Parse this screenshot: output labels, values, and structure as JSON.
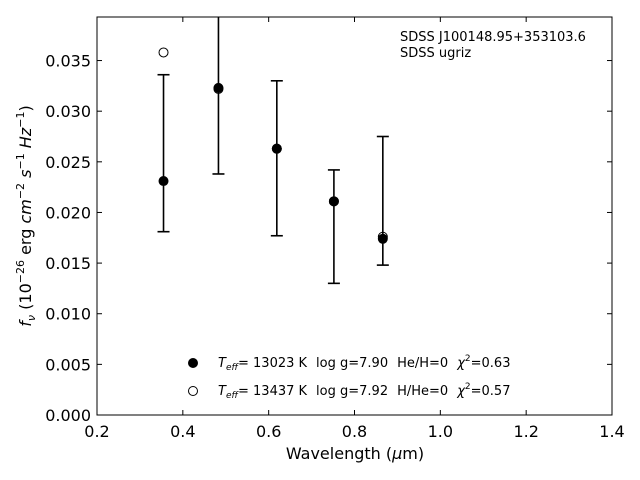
{
  "chart_data": {
    "type": "scatter",
    "title": "",
    "annotation": [
      "SDSS J100148.95+353103.6",
      "SDSS ugriz"
    ],
    "xlabel": "Wavelength (μm)",
    "ylabel": "f_ν (10^-26 erg cm^-2 s^-1 Hz^-1)",
    "xlim": [
      0.2,
      1.4
    ],
    "ylim": [
      0.0,
      0.0393
    ],
    "xticks": [
      "0.2",
      "0.4",
      "0.6",
      "0.8",
      "1.0",
      "1.2",
      "1.4"
    ],
    "yticks": [
      "0.000",
      "0.005",
      "0.010",
      "0.015",
      "0.020",
      "0.025",
      "0.030",
      "0.035"
    ],
    "grid": false,
    "legend_position": "bottom-center",
    "observed": {
      "x": [
        0.355,
        0.483,
        0.619,
        0.752,
        0.866
      ],
      "y": [
        0.0231,
        0.0324,
        0.0265,
        0.0211,
        0.0172
      ],
      "err_low": [
        0.0181,
        0.0238,
        0.0177,
        0.013,
        0.0148
      ],
      "err_high": [
        0.0336,
        0.0393,
        0.033,
        0.0242,
        0.0275
      ]
    },
    "series": [
      {
        "legend": {
          "teff_value": "= 13023 K",
          "logg": "log g=7.90",
          "comp": "He/H=0",
          "chi2": "=0.63"
        },
        "marker": "filled",
        "x": [
          0.355,
          0.483,
          0.619,
          0.752,
          0.866
        ],
        "y": [
          0.0231,
          0.0323,
          0.0263,
          0.0211,
          0.0174
        ]
      },
      {
        "legend": {
          "teff_value": "= 13437 K",
          "logg": "log g=7.92",
          "comp": "H/He=0",
          "chi2": "=0.57"
        },
        "marker": "open",
        "x": [
          0.355,
          0.483,
          0.619,
          0.752,
          0.866
        ],
        "y": [
          0.0358,
          0.0322,
          0.0263,
          0.0211,
          0.0176
        ]
      }
    ]
  }
}
